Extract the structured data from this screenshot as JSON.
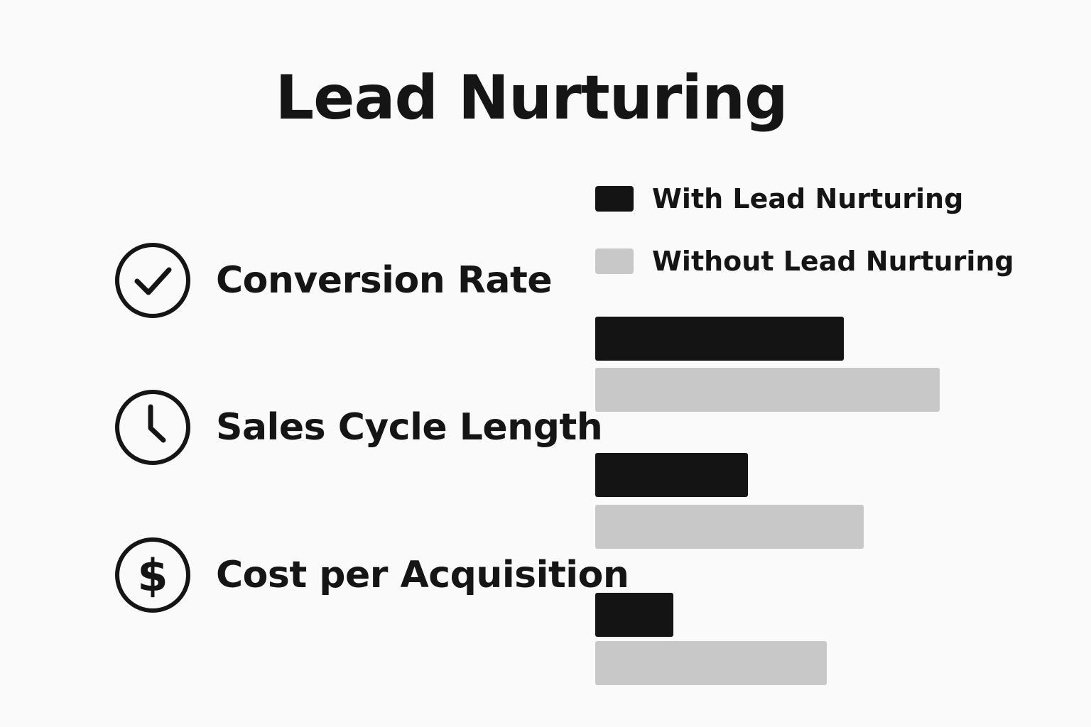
{
  "colors": {
    "with": "#141414",
    "without": "#c8c8c8",
    "text": "#151515",
    "background": "#fafafa"
  },
  "metrics": [
    {
      "label": "Conversion Rate",
      "icon": "check-circle-icon"
    },
    {
      "label": "Sales Cycle Length",
      "icon": "clock-icon"
    },
    {
      "label": "Cost per Acquisition",
      "icon": "dollar-circle-icon"
    }
  ],
  "chart_data": {
    "type": "bar",
    "orientation": "horizontal",
    "title": "Lead Nurturing",
    "categories": [
      "Conversion Rate",
      "Sales Cycle Length",
      "Cost per Acquisition"
    ],
    "series": [
      {
        "name": "With Lead Nurturing",
        "values": [
          350,
          215,
          110
        ]
      },
      {
        "name": "Without Lead Nurturing",
        "values": [
          485,
          378,
          326
        ]
      }
    ],
    "xlim": [
      0,
      500
    ],
    "grid": false,
    "axes_visible": false,
    "legend_position": "top-right"
  }
}
